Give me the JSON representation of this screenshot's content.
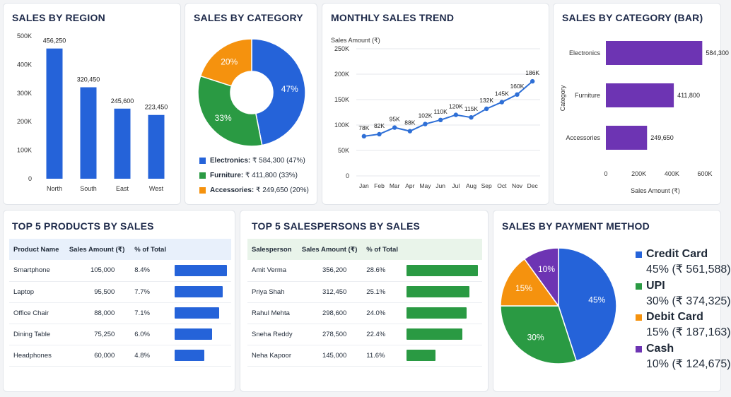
{
  "colors": {
    "blue": "#2563d9",
    "green": "#2a9a43",
    "orange": "#f5920e",
    "purple": "#6d34b3",
    "line": "#2e6fd6",
    "grid": "#e5e7eb",
    "products_header_bg": "#e8f0fb",
    "salespersons_header_bg": "#e9f4ea"
  },
  "region": {
    "title": "SALES BY REGION",
    "chart_data": {
      "type": "bar",
      "categories": [
        "North",
        "South",
        "East",
        "West"
      ],
      "values": [
        456250,
        320450,
        245600,
        223450
      ],
      "value_labels": [
        "456,250",
        "320,450",
        "245,600",
        "223,450"
      ],
      "ylim": [
        0,
        500000
      ],
      "yticks": [
        0,
        100000,
        200000,
        300000,
        400000,
        500000
      ],
      "ytick_labels": [
        "0",
        "100K",
        "200K",
        "300K",
        "400K",
        "500K"
      ],
      "color": "#2563d9"
    }
  },
  "category_donut": {
    "title": "SALES BY CATEGORY",
    "chart_data": {
      "type": "pie",
      "labels": [
        "Electronics",
        "Furniture",
        "Accessories"
      ],
      "values": [
        584300,
        411800,
        249650
      ],
      "percent_labels": [
        "47%",
        "33%",
        "20%"
      ],
      "colors": [
        "#2563d9",
        "#2a9a43",
        "#f5920e"
      ],
      "donut": true
    },
    "legend": [
      {
        "name": "Electronics:",
        "detail": "₹ 584,300 (47%)"
      },
      {
        "name": "Furniture:",
        "detail": "₹ 411,800 (33%)"
      },
      {
        "name": "Accessories:",
        "detail": "₹ 249,650 (20%)"
      }
    ]
  },
  "monthly": {
    "title": "MONTHLY SALES TREND",
    "chart_data": {
      "type": "line",
      "ylabel": "Sales Amount (₹)",
      "x": [
        "Jan",
        "Feb",
        "Mar",
        "Apr",
        "May",
        "Jun",
        "Jul",
        "Aug",
        "Sep",
        "Oct",
        "Nov",
        "Dec"
      ],
      "values": [
        78000,
        82000,
        95000,
        88000,
        102000,
        110000,
        120000,
        115000,
        132000,
        145000,
        160000,
        186000
      ],
      "point_labels": [
        "78K",
        "82K",
        "95K",
        "88K",
        "102K",
        "110K",
        "120K",
        "115K",
        "132K",
        "145K",
        "160K",
        "186K"
      ],
      "ylim": [
        0,
        250000
      ],
      "yticks": [
        0,
        50000,
        100000,
        150000,
        200000,
        250000
      ],
      "ytick_labels": [
        "0",
        "50K",
        "100K",
        "150K",
        "200K",
        "250K"
      ],
      "grid": true
    }
  },
  "category_bar": {
    "title": "SALES BY CATEGORY (BAR)",
    "chart_data": {
      "type": "bar",
      "orientation": "horizontal",
      "categories": [
        "Electronics",
        "Furniture",
        "Accessories"
      ],
      "values": [
        584300,
        411800,
        249650
      ],
      "value_labels": [
        "584,300",
        "411,800",
        "249,650"
      ],
      "xlabel": "Sales Amount (₹)",
      "ylabel": "Category",
      "xlim": [
        0,
        600000
      ],
      "xticks": [
        0,
        200000,
        400000,
        600000
      ],
      "xtick_labels": [
        "0",
        "200K",
        "400K",
        "600K"
      ],
      "color": "#6d34b3"
    }
  },
  "products": {
    "title": "TOP 5 PRODUCTS BY SALES",
    "headers": [
      "Product Name",
      "Sales Amount (₹)",
      "% of Total"
    ],
    "rows": [
      {
        "name": "Smartphone",
        "amount": "105,000",
        "pct": "8.4%",
        "value": 8.4
      },
      {
        "name": "Laptop",
        "amount": "95,500",
        "pct": "7.7%",
        "value": 7.7
      },
      {
        "name": "Office Chair",
        "amount": "88,000",
        "pct": "7.1%",
        "value": 7.1
      },
      {
        "name": "Dining Table",
        "amount": "75,250",
        "pct": "6.0%",
        "value": 6.0
      },
      {
        "name": "Headphones",
        "amount": "60,000",
        "pct": "4.8%",
        "value": 4.8
      }
    ]
  },
  "salespersons": {
    "title": "TOP 5 SALESPERSONS BY SALES",
    "headers": [
      "Salesperson",
      "Sales Amount (₹)",
      "% of Total"
    ],
    "rows": [
      {
        "name": "Amit Verma",
        "amount": "356,200",
        "pct": "28.6%",
        "value": 28.6
      },
      {
        "name": "Priya Shah",
        "amount": "312,450",
        "pct": "25.1%",
        "value": 25.1
      },
      {
        "name": "Rahul Mehta",
        "amount": "298,600",
        "pct": "24.0%",
        "value": 24.0
      },
      {
        "name": "Sneha Reddy",
        "amount": "278,500",
        "pct": "22.4%",
        "value": 22.4
      },
      {
        "name": "Neha Kapoor",
        "amount": "145,000",
        "pct": "11.6%",
        "value": 11.6
      }
    ]
  },
  "payment": {
    "title": "SALES BY PAYMENT METHOD",
    "chart_data": {
      "type": "pie",
      "labels": [
        "Credit Card",
        "UPI",
        "Debit Card",
        "Cash"
      ],
      "values": [
        561588,
        374325,
        187163,
        124675
      ],
      "percent_labels": [
        "45%",
        "30%",
        "15%",
        "10%"
      ],
      "colors": [
        "#2563d9",
        "#2a9a43",
        "#f5920e",
        "#6d34b3"
      ]
    },
    "legend": [
      {
        "name": "Credit Card",
        "detail": "45% (₹ 561,588)"
      },
      {
        "name": "UPI",
        "detail": "30% (₹ 374,325)"
      },
      {
        "name": "Debit Card",
        "detail": "15% (₹ 187,163)"
      },
      {
        "name": "Cash",
        "detail": "10% (₹ 124,675)"
      }
    ]
  }
}
